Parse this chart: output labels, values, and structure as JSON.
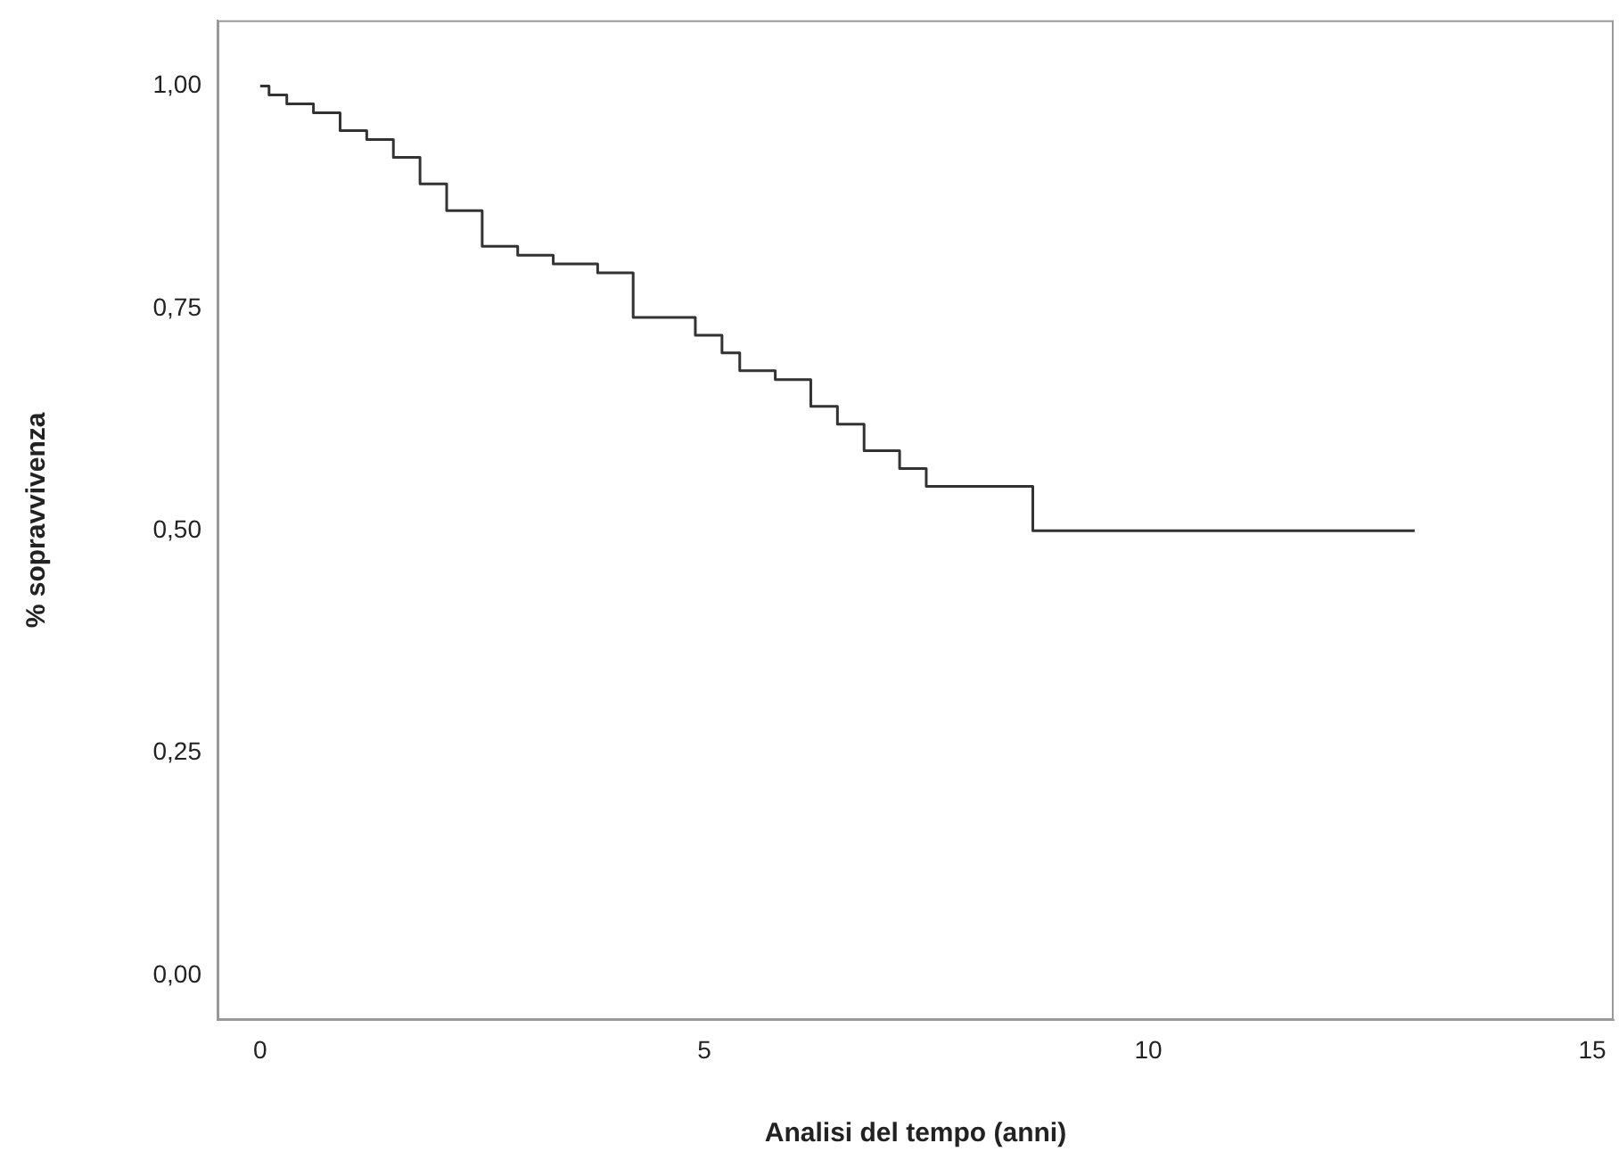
{
  "chart_data": {
    "type": "step",
    "xlabel": "Analisi del tempo (anni)",
    "ylabel": "% sopravvivenza",
    "xlim": [
      -0.48,
      15.24
    ],
    "xticks": [
      0,
      5,
      10,
      15
    ],
    "ylim": [
      -0.05,
      1.074
    ],
    "yticks": [
      {
        "value": 0,
        "label": "0,00"
      },
      {
        "value": 0.25,
        "label": "0,25"
      },
      {
        "value": 0.5,
        "label": "0,50"
      },
      {
        "value": 0.75,
        "label": "0,75"
      },
      {
        "value": 1,
        "label": "1,00"
      }
    ],
    "grid": false,
    "legend": false,
    "marker": "none",
    "line_style": "solid",
    "series": [
      {
        "color": "#333333",
        "x": [
          0,
          0.1,
          0.3,
          0.6,
          0.9,
          1.2,
          1.5,
          1.8,
          2.1,
          2.5,
          2.9,
          3.3,
          3.8,
          4.2,
          4.9,
          5.2,
          5.4,
          5.8,
          6.2,
          6.5,
          6.8,
          7.2,
          7.5,
          8.7,
          13.0
        ],
        "values": [
          1.0,
          0.99,
          0.98,
          0.97,
          0.95,
          0.94,
          0.92,
          0.89,
          0.86,
          0.82,
          0.81,
          0.8,
          0.79,
          0.74,
          0.72,
          0.7,
          0.68,
          0.67,
          0.64,
          0.62,
          0.59,
          0.57,
          0.55,
          0.5,
          0.5
        ]
      }
    ]
  }
}
